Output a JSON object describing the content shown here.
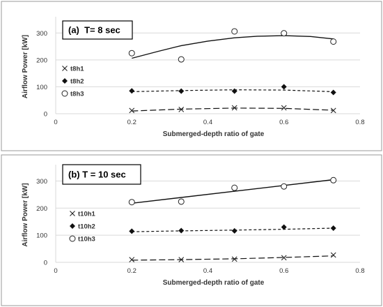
{
  "chart_data": [
    {
      "type": "scatter",
      "title": "(a)  T= 8 sec",
      "xlabel": "Submerged-depth ratio of gate",
      "ylabel": "Airflow Power [kW]",
      "xlim": [
        0,
        0.8
      ],
      "ylim": [
        0,
        350
      ],
      "xticks": [
        "0",
        "0.2",
        "0.4",
        "0.6",
        "0.8"
      ],
      "yticks": [
        "0",
        "100",
        "200",
        "300"
      ],
      "grid": true,
      "legend_position": "left",
      "series": [
        {
          "name": "t8h1",
          "marker": "x",
          "x": [
            0.2,
            0.33,
            0.47,
            0.6,
            0.73
          ],
          "y": [
            12,
            16,
            22,
            22,
            12
          ],
          "trend": {
            "style": "long-dash",
            "x": [
              0.2,
              0.33,
              0.47,
              0.6,
              0.73
            ],
            "y": [
              10,
              17,
              21,
              20,
              13
            ]
          }
        },
        {
          "name": "t8h2",
          "marker": "diamond",
          "x": [
            0.2,
            0.33,
            0.47,
            0.6,
            0.73
          ],
          "y": [
            85,
            84,
            84,
            100,
            79
          ],
          "trend": {
            "style": "short-dash",
            "x": [
              0.2,
              0.33,
              0.47,
              0.6,
              0.73
            ],
            "y": [
              82,
              86,
              89,
              88,
              82
            ]
          }
        },
        {
          "name": "t8h3",
          "marker": "circle",
          "x": [
            0.2,
            0.33,
            0.47,
            0.6,
            0.73
          ],
          "y": [
            225,
            202,
            306,
            299,
            268
          ],
          "trend": {
            "style": "solid",
            "x": [
              0.2,
              0.27,
              0.33,
              0.4,
              0.47,
              0.53,
              0.6,
              0.67,
              0.73
            ],
            "y": [
              206,
              232,
              253,
              270,
              282,
              288,
              290,
              287,
              278
            ]
          }
        }
      ]
    },
    {
      "type": "scatter",
      "title": "(b) T = 10 sec",
      "xlabel": "Submerged-depth ratio of gate",
      "ylabel": "Airflow Power [kW]",
      "xlim": [
        0,
        0.8
      ],
      "ylim": [
        0,
        350
      ],
      "xticks": [
        "0",
        "0.2",
        "0.4",
        "0.6",
        "0.8"
      ],
      "yticks": [
        "0",
        "100",
        "200",
        "300"
      ],
      "grid": true,
      "legend_position": "left",
      "series": [
        {
          "name": "t10h1",
          "marker": "x",
          "x": [
            0.2,
            0.33,
            0.47,
            0.6,
            0.73
          ],
          "y": [
            10,
            10,
            12,
            17,
            27
          ],
          "trend": {
            "style": "long-dash",
            "x": [
              0.2,
              0.33,
              0.47,
              0.6,
              0.73
            ],
            "y": [
              8,
              10,
              13,
              18,
              24
            ]
          }
        },
        {
          "name": "t10h2",
          "marker": "diamond",
          "x": [
            0.2,
            0.33,
            0.47,
            0.6,
            0.73
          ],
          "y": [
            115,
            117,
            116,
            130,
            126
          ],
          "trend": {
            "style": "short-dash",
            "x": [
              0.2,
              0.33,
              0.47,
              0.6,
              0.73
            ],
            "y": [
              113,
              116,
              119,
              122,
              126
            ]
          }
        },
        {
          "name": "t10h3",
          "marker": "circle",
          "x": [
            0.2,
            0.33,
            0.47,
            0.6,
            0.73
          ],
          "y": [
            222,
            224,
            275,
            280,
            303
          ],
          "trend": {
            "style": "solid",
            "x": [
              0.2,
              0.73
            ],
            "y": [
              218,
              305
            ]
          }
        }
      ]
    }
  ]
}
